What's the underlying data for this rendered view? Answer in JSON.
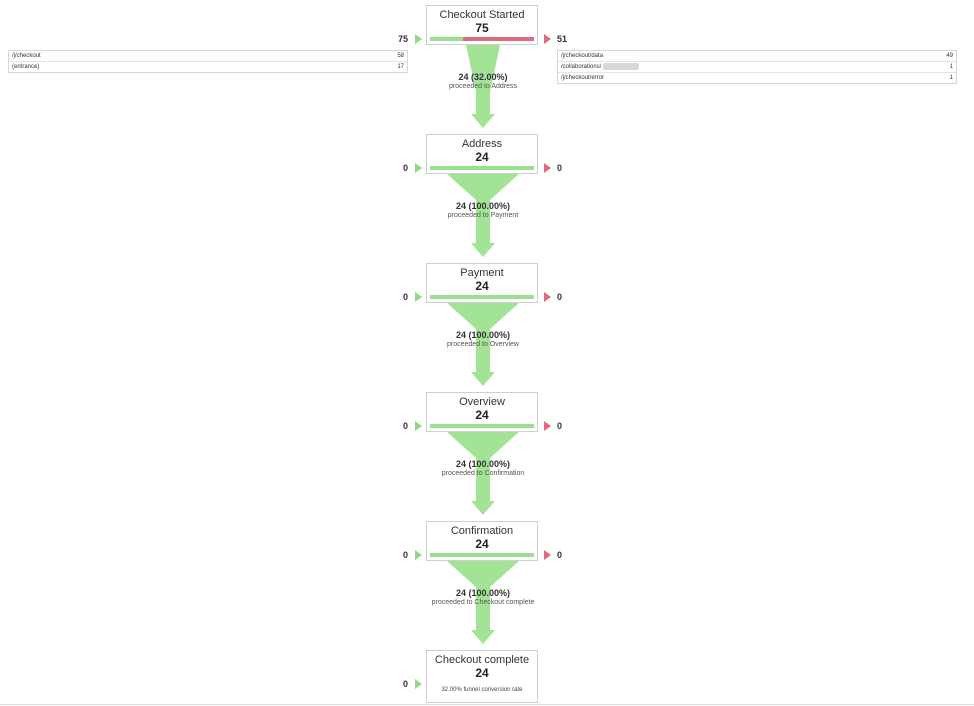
{
  "stages": [
    {
      "title": "Checkout Started",
      "count": "75",
      "entries": "75",
      "exits": "51",
      "proceed_value": "24 (32.00%)",
      "proceed_label": "proceeded to Address",
      "bar_green_fraction": 0.32
    },
    {
      "title": "Address",
      "count": "24",
      "entries": "0",
      "exits": "0",
      "proceed_value": "24 (100.00%)",
      "proceed_label": "proceeded to Payment",
      "bar_green_fraction": 1.0
    },
    {
      "title": "Payment",
      "count": "24",
      "entries": "0",
      "exits": "0",
      "proceed_value": "24 (100.00%)",
      "proceed_label": "proceeded to Overview",
      "bar_green_fraction": 1.0
    },
    {
      "title": "Overview",
      "count": "24",
      "entries": "0",
      "exits": "0",
      "proceed_value": "24 (100.00%)",
      "proceed_label": "proceeded to Confirmation",
      "bar_green_fraction": 1.0
    },
    {
      "title": "Confirmation",
      "count": "24",
      "entries": "0",
      "exits": "0",
      "proceed_value": "24 (100.00%)",
      "proceed_label": "proceeded to Checkout complete",
      "bar_green_fraction": 1.0
    },
    {
      "title": "Checkout complete",
      "count": "24",
      "entries": "0",
      "conversion": "32.00% funnel conversion rate"
    }
  ],
  "entrance_sources": [
    {
      "path": "/j/checkout",
      "value": "58"
    },
    {
      "path": "(entrance)",
      "value": "17"
    }
  ],
  "exit_destinations": [
    {
      "path": "/j/checkout/data",
      "value": "49"
    },
    {
      "path": "/collaborations/",
      "value": "1",
      "redacted": true
    },
    {
      "path": "/j/checkout/error",
      "value": "1"
    }
  ],
  "colors": {
    "green": "#9be08e",
    "green_arrow": "#8fd982",
    "red": "#e06b7c",
    "funnel": "#a3e396"
  }
}
